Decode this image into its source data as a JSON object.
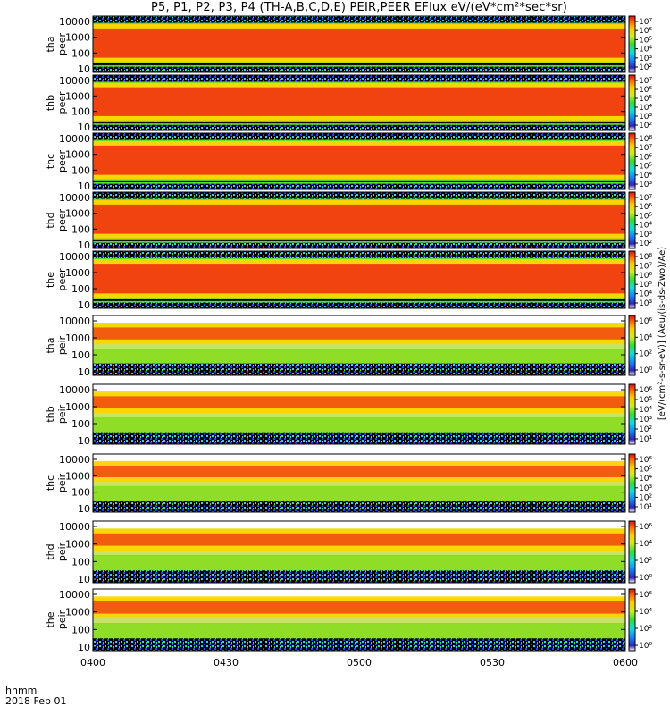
{
  "title": "P5, P1, P2, P3, P4 (TH-A,B,C,D,E) PEIR,PEER EFlux eV/(eV*cm²*sec*sr)",
  "footer": {
    "time_label": "hhmm",
    "date_label": "2018 Feb 01"
  },
  "colorbar_label": "[eV/(cm²-s-sr-eV)] (Aeu/(is-ds-Zwo)/Ae)",
  "colors": {
    "ion_band": "#ee3311",
    "electron_band": "#ffd400",
    "background": "#55dd33",
    "fill_dark": "#000000"
  },
  "chart_data": {
    "type": "heatmap",
    "xlabel": "",
    "x_ticks": [
      "0400",
      "0430",
      "0500",
      "0530",
      "0600"
    ],
    "panels": [
      {
        "probe": "tha",
        "product": "peer",
        "label_line1": "tha",
        "label_line2": "peer",
        "y_ticks": [
          "10000",
          "1000",
          "100",
          "10"
        ],
        "cbar_ticks": [
          "10⁷",
          "10⁶",
          "10⁵",
          "10⁴",
          "10³",
          "10²"
        ]
      },
      {
        "probe": "thb",
        "product": "peer",
        "label_line1": "thb",
        "label_line2": "peer",
        "y_ticks": [
          "10000",
          "1000",
          "100",
          "10"
        ],
        "cbar_ticks": [
          "10⁷",
          "10⁶",
          "10⁵",
          "10⁴",
          "10³",
          "10²"
        ]
      },
      {
        "probe": "thc",
        "product": "peer",
        "label_line1": "thc",
        "label_line2": "peer",
        "y_ticks": [
          "10000",
          "1000",
          "100",
          "10"
        ],
        "cbar_ticks": [
          "10⁸",
          "10⁷",
          "10⁶",
          "10⁵",
          "10⁴",
          "10³"
        ]
      },
      {
        "probe": "thd",
        "product": "peer",
        "label_line1": "thd",
        "label_line2": "peer",
        "y_ticks": [
          "10000",
          "1000",
          "100",
          "10"
        ],
        "cbar_ticks": [
          "10⁷",
          "10⁶",
          "10⁵",
          "10⁴",
          "10³",
          "10²"
        ]
      },
      {
        "probe": "the",
        "product": "peer",
        "label_line1": "the",
        "label_line2": "peer",
        "y_ticks": [
          "10000",
          "1000",
          "100",
          "10"
        ],
        "cbar_ticks": [
          "10⁸",
          "10⁷",
          "10⁶",
          "10⁵",
          "10⁴",
          "10³"
        ]
      },
      {
        "probe": "tha",
        "product": "peir",
        "label_line1": "tha",
        "label_line2": "peir",
        "y_ticks": [
          "10000",
          "1000",
          "100",
          "10"
        ],
        "cbar_ticks": [
          "10⁶",
          "10⁴",
          "10²",
          "10⁰"
        ]
      },
      {
        "probe": "thb",
        "product": "peir",
        "label_line1": "thb",
        "label_line2": "peir",
        "y_ticks": [
          "10000",
          "1000",
          "100",
          "10"
        ],
        "cbar_ticks": [
          "10⁶",
          "10⁵",
          "10⁴",
          "10³",
          "10²",
          "10¹"
        ]
      },
      {
        "probe": "thc",
        "product": "peir",
        "label_line1": "thc",
        "label_line2": "peir",
        "y_ticks": [
          "10000",
          "1000",
          "100",
          "10"
        ],
        "cbar_ticks": [
          "10⁶",
          "10⁵",
          "10⁴",
          "10³",
          "10²",
          "10¹"
        ]
      },
      {
        "probe": "thd",
        "product": "peir",
        "label_line1": "thd",
        "label_line2": "peir",
        "y_ticks": [
          "10000",
          "1000",
          "100",
          "10"
        ],
        "cbar_ticks": [
          "10⁶",
          "10⁴",
          "10²",
          "10⁰"
        ]
      },
      {
        "probe": "the",
        "product": "peir",
        "label_line1": "the",
        "label_line2": "peir",
        "y_ticks": [
          "10000",
          "1000",
          "100",
          "10"
        ],
        "cbar_ticks": [
          "10⁶",
          "10⁴",
          "10²",
          "10⁰"
        ]
      }
    ]
  }
}
